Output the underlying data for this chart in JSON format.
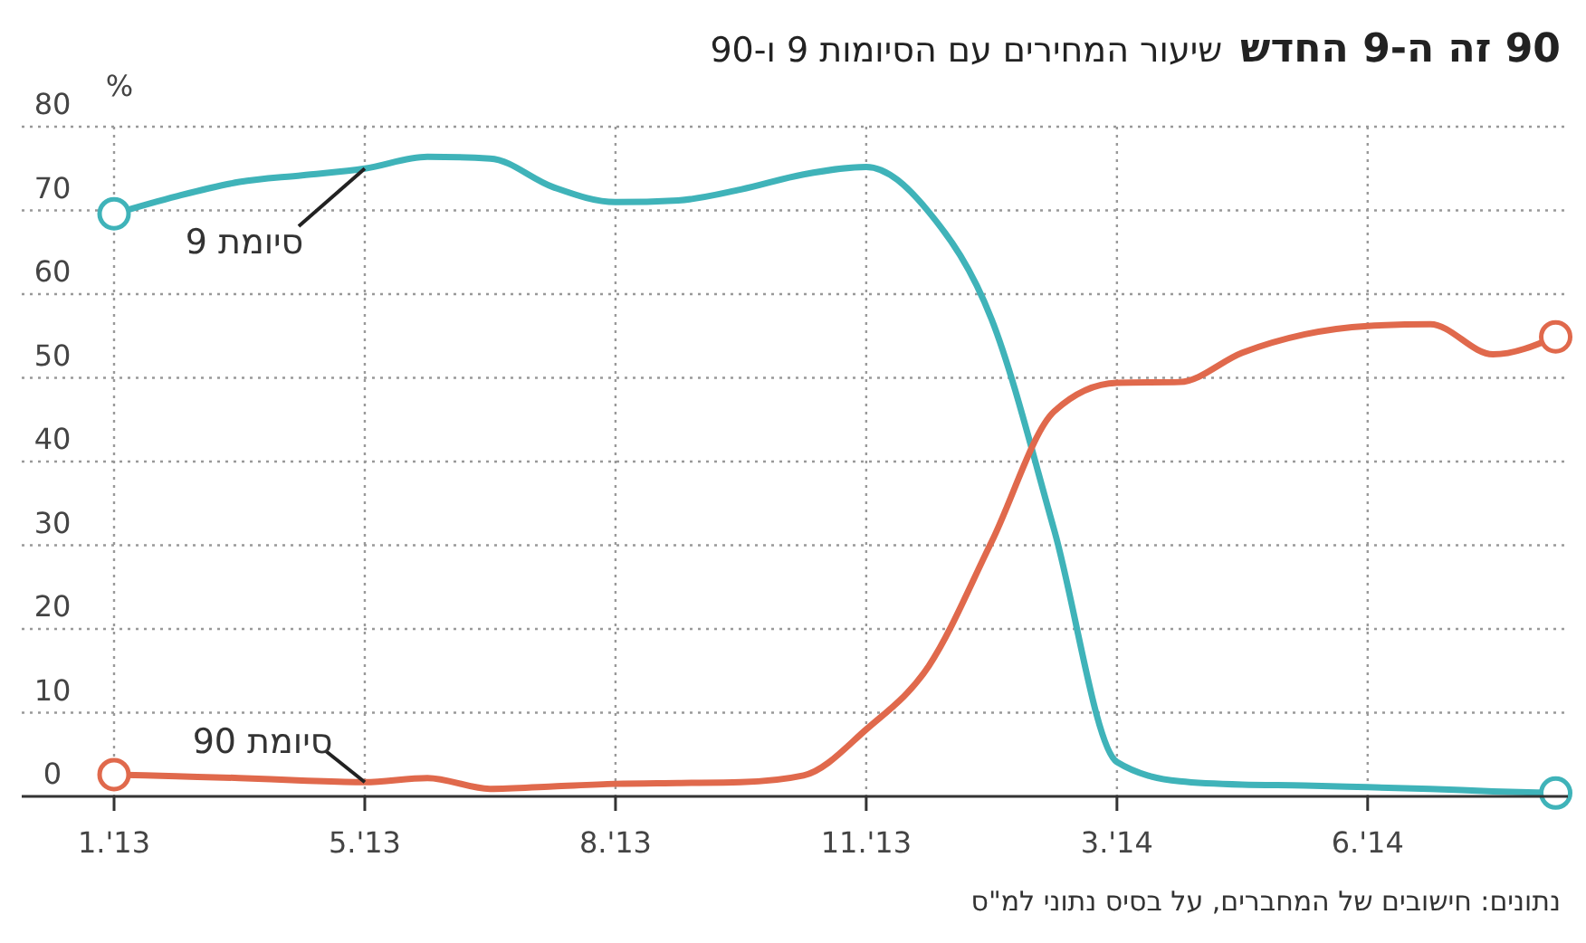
{
  "chart_data": {
    "type": "line",
    "title": "90 זה ה-9 החדש",
    "subtitle": "שיעור המחירים עם הסיומות 9 ו-90",
    "ylabel": "%",
    "annotations": [
      "נתונים: חישובים של המחברים, על בסיס נתוני למ\"ס"
    ],
    "categories": [
      "1.'13",
      null,
      null,
      null,
      "5.'13",
      null,
      null,
      null,
      "8.'13",
      null,
      null,
      null,
      "11.'13",
      null,
      null,
      null,
      "3.'14",
      null,
      null,
      null,
      "6.'14",
      null,
      null,
      null
    ],
    "ylim": [
      0,
      80
    ],
    "yticks": [
      0,
      10,
      20,
      30,
      40,
      50,
      60,
      70,
      80
    ],
    "grid": true,
    "legend": false,
    "line_style": "solid",
    "series": [
      {
        "name": "סיומת 9",
        "color": "#3fb3b9",
        "values": [
          69.6,
          71.7,
          73.4,
          74.2,
          75,
          76.4,
          76.2,
          72.8,
          71,
          71.2,
          72.5,
          74.3,
          75.2,
          69.8,
          57,
          31.8,
          4.1,
          1.8,
          1.4,
          1.3,
          1.1,
          0.9,
          0.6,
          0.4
        ]
      },
      {
        "name": "סיומת 90",
        "color": "#e0694c",
        "values": [
          2.6,
          2.4,
          2.2,
          1.9,
          1.7,
          2.2,
          0.9,
          1.2,
          1.5,
          1.6,
          1.7,
          2.5,
          8,
          15.6,
          30.4,
          46,
          49.4,
          49.5,
          53,
          55.2,
          56.2,
          56.4,
          52.8,
          54.9
        ]
      }
    ]
  }
}
